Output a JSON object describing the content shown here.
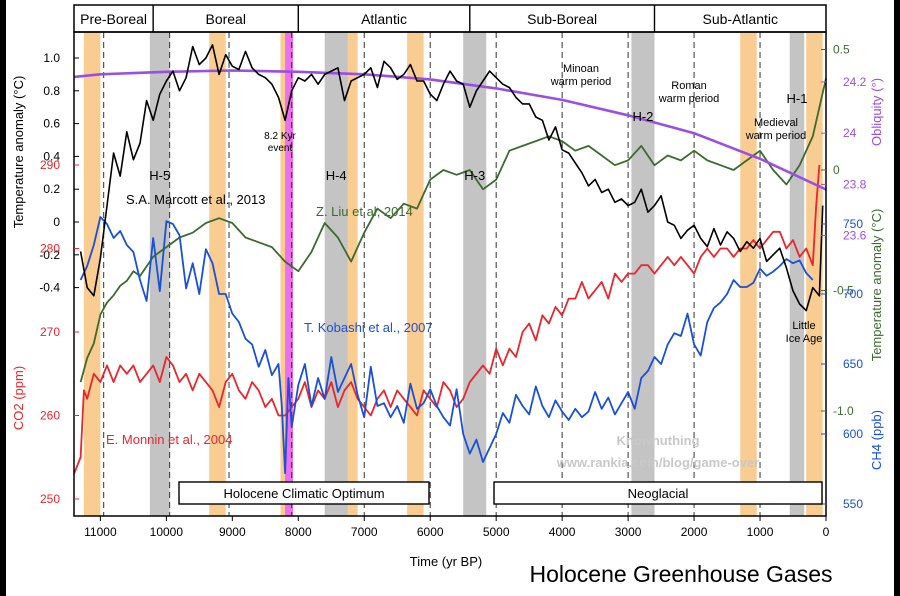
{
  "chart_data": {
    "type": "line",
    "title": "Holocene Greenhouse Gases",
    "xlabel": "Time (yr BP)",
    "xlim": [
      11400,
      0
    ],
    "xticks": [
      11000,
      10000,
      9000,
      8000,
      7000,
      6000,
      5000,
      4000,
      3000,
      2000,
      1000,
      0
    ],
    "periods": [
      {
        "label": "Pre-Boreal",
        "start": 11400,
        "end": 10200
      },
      {
        "label": "Boreal",
        "start": 10200,
        "end": 8000
      },
      {
        "label": "Atlantic",
        "start": 8000,
        "end": 5400
      },
      {
        "label": "Sub-Boreal",
        "start": 5400,
        "end": 2600
      },
      {
        "label": "Sub-Atlantic",
        "start": 2600,
        "end": 0
      }
    ],
    "axes": {
      "temperature_marcott": {
        "label": "Temperature anomaly (°C)",
        "ticks": [
          "1.0",
          "0.8",
          "0.6",
          "0.4",
          "0.2",
          "0",
          "-0.2",
          "-0.4"
        ],
        "color": "#000000"
      },
      "co2": {
        "label": "CO2 (ppm)",
        "ticks": [
          "290",
          "280",
          "270",
          "260",
          "250"
        ],
        "color": "#e8262d"
      },
      "obliquity": {
        "label": "Obliquity (°)",
        "ticks": [
          "24.2",
          "24",
          "23.8",
          "23.6"
        ],
        "color": "#9a4fe0"
      },
      "temperature_liu": {
        "label": "Temperature anomaly (°C)",
        "ticks": [
          "0.5",
          "0",
          "-0.5",
          "-1.0"
        ],
        "color": "#3c6b2e"
      },
      "ch4": {
        "label": "CH4 (ppb)",
        "ticks": [
          "750",
          "700",
          "650",
          "600",
          "550"
        ],
        "color": "#1a4fd8"
      }
    },
    "cold_events": [
      {
        "label": "H-5",
        "start": 10250,
        "end": 9950
      },
      {
        "label": "H-4",
        "start": 7600,
        "end": 7250
      },
      {
        "label": "H-3",
        "start": 5500,
        "end": 5150
      },
      {
        "label": "H-2",
        "start": 2950,
        "end": 2600
      },
      {
        "label": "H-1",
        "start": 550,
        "end": 330
      }
    ],
    "warm_bands": [
      {
        "start": 11250,
        "end": 11000
      },
      {
        "start": 9350,
        "end": 9100
      },
      {
        "start": 8270,
        "end": 8120
      },
      {
        "start": 7350,
        "end": 7100
      },
      {
        "start": 6350,
        "end": 6100
      },
      {
        "start": 1300,
        "end": 1050
      },
      {
        "start": 300,
        "end": 50
      }
    ],
    "event_8_2": {
      "label": "8.2 Kyr event",
      "start": 8200,
      "end": 8080
    },
    "dashed_lines": [
      10950,
      9950,
      9050,
      8100,
      7000,
      6000,
      5000,
      4000,
      3000,
      2000,
      1000
    ],
    "annotations": {
      "minoan": "Minoan warm period",
      "roman": "Roman warm period",
      "medieval": "Medieval warm period",
      "little_ice_age": "Little Ice Age",
      "event_8_2": "8.2 Kyr event",
      "optimum": "Holocene Climatic Optimum",
      "neoglacial": "Neoglacial",
      "watermark": [
        "Knownuthing",
        "www.rankia.com/blog/game-over"
      ]
    },
    "series": [
      {
        "name": "S.A. Marcott et al., 2013",
        "axis": "temperature_marcott",
        "color": "#000000",
        "x": [
          11300,
          11200,
          11100,
          11000,
          10900,
          10800,
          10700,
          10600,
          10500,
          10400,
          10300,
          10200,
          10100,
          10000,
          9900,
          9800,
          9700,
          9600,
          9500,
          9400,
          9300,
          9200,
          9100,
          9000,
          8900,
          8800,
          8700,
          8600,
          8500,
          8400,
          8300,
          8200,
          8100,
          8000,
          7900,
          7800,
          7700,
          7600,
          7500,
          7400,
          7300,
          7200,
          7100,
          7000,
          6900,
          6800,
          6700,
          6600,
          6500,
          6400,
          6300,
          6200,
          6100,
          6000,
          5900,
          5800,
          5700,
          5600,
          5500,
          5400,
          5300,
          5200,
          5100,
          5000,
          4900,
          4800,
          4700,
          4600,
          4500,
          4400,
          4300,
          4200,
          4100,
          4000,
          3900,
          3800,
          3700,
          3600,
          3500,
          3400,
          3300,
          3200,
          3100,
          3000,
          2900,
          2800,
          2700,
          2600,
          2500,
          2400,
          2300,
          2200,
          2100,
          2000,
          1900,
          1800,
          1700,
          1600,
          1500,
          1400,
          1300,
          1200,
          1100,
          1000,
          900,
          800,
          700,
          600,
          500,
          400,
          300,
          200,
          100,
          50
        ],
        "y": [
          -0.18,
          -0.4,
          -0.45,
          -0.22,
          0.1,
          0.42,
          0.28,
          0.55,
          0.38,
          0.48,
          0.74,
          0.62,
          0.78,
          0.86,
          0.92,
          0.8,
          0.88,
          1.07,
          0.96,
          1.0,
          1.08,
          0.9,
          1.02,
          0.95,
          0.93,
          1.04,
          0.94,
          0.9,
          0.88,
          0.84,
          0.76,
          0.62,
          0.8,
          0.88,
          0.86,
          0.9,
          0.84,
          0.9,
          0.92,
          0.94,
          0.74,
          0.86,
          0.88,
          0.9,
          0.94,
          0.82,
          0.98,
          0.94,
          0.87,
          0.9,
          0.96,
          0.86,
          0.86,
          0.78,
          0.74,
          0.84,
          0.92,
          0.86,
          0.84,
          0.7,
          0.8,
          0.86,
          0.92,
          0.88,
          0.84,
          0.82,
          0.76,
          0.72,
          0.72,
          0.64,
          0.62,
          0.5,
          0.58,
          0.44,
          0.42,
          0.36,
          0.3,
          0.22,
          0.26,
          0.18,
          0.2,
          0.12,
          0.14,
          0.1,
          0.12,
          0.2,
          0.06,
          0.1,
          0.16,
          0.0,
          -0.02,
          -0.1,
          -0.05,
          -0.02,
          -0.1,
          -0.15,
          -0.04,
          -0.14,
          -0.06,
          -0.1,
          -0.18,
          -0.12,
          -0.16,
          -0.1,
          -0.24,
          -0.2,
          -0.16,
          -0.28,
          -0.42,
          -0.5,
          -0.54,
          -0.4,
          -0.45,
          0.1
        ]
      },
      {
        "name": "Z. Liu et al., 2014",
        "axis": "temperature_liu",
        "color": "#3c6b2e",
        "x": [
          11300,
          11200,
          11100,
          11000,
          10900,
          10800,
          10700,
          10600,
          10500,
          10400,
          10300,
          10200,
          10100,
          10000,
          9800,
          9600,
          9400,
          9200,
          9000,
          8800,
          8600,
          8400,
          8200,
          8000,
          7800,
          7600,
          7400,
          7200,
          7000,
          6800,
          6600,
          6400,
          6200,
          6000,
          5800,
          5600,
          5400,
          5200,
          5000,
          4800,
          4600,
          4400,
          4200,
          4000,
          3800,
          3600,
          3400,
          3200,
          3000,
          2800,
          2600,
          2400,
          2200,
          2000,
          1800,
          1600,
          1400,
          1200,
          1000,
          800,
          600,
          400,
          200,
          0
        ],
        "y": [
          -0.88,
          -0.78,
          -0.72,
          -0.6,
          -0.55,
          -0.52,
          -0.48,
          -0.46,
          -0.42,
          -0.44,
          -0.4,
          -0.36,
          -0.34,
          -0.32,
          -0.28,
          -0.26,
          -0.22,
          -0.2,
          -0.22,
          -0.28,
          -0.3,
          -0.32,
          -0.38,
          -0.42,
          -0.34,
          -0.22,
          -0.28,
          -0.38,
          -0.26,
          -0.16,
          -0.2,
          -0.14,
          -0.16,
          -0.04,
          0.0,
          -0.02,
          0.0,
          -0.08,
          -0.04,
          0.08,
          0.1,
          0.12,
          0.14,
          0.12,
          0.08,
          0.1,
          0.06,
          0.02,
          0.04,
          0.1,
          0.02,
          0.06,
          0.04,
          0.08,
          0.04,
          0.02,
          0.0,
          0.04,
          0.08,
          0.0,
          -0.06,
          0.02,
          0.14,
          0.38
        ]
      },
      {
        "name": "T. Kobashi et al., 2007",
        "axis": "ch4",
        "color": "#1a4fd8",
        "x": [
          11300,
          11200,
          11100,
          11000,
          10900,
          10800,
          10700,
          10600,
          10500,
          10400,
          10300,
          10200,
          10100,
          10000,
          9900,
          9800,
          9700,
          9600,
          9500,
          9400,
          9300,
          9200,
          9100,
          9000,
          8900,
          8800,
          8700,
          8600,
          8500,
          8400,
          8300,
          8250,
          8200,
          8150,
          8100,
          8000,
          7900,
          7800,
          7700,
          7600,
          7500,
          7400,
          7300,
          7200,
          7100,
          7000,
          6900,
          6800,
          6700,
          6600,
          6500,
          6400,
          6300,
          6200,
          6100,
          6000,
          5900,
          5800,
          5700,
          5600,
          5500,
          5400,
          5300,
          5200,
          5100,
          5000,
          4900,
          4800,
          4700,
          4600,
          4500,
          4400,
          4300,
          4200,
          4100,
          4000,
          3900,
          3800,
          3700,
          3600,
          3500,
          3400,
          3300,
          3200,
          3100,
          3000,
          2900,
          2800,
          2700,
          2600,
          2500,
          2400,
          2300,
          2200,
          2100,
          2000,
          1900,
          1800,
          1700,
          1600,
          1500,
          1400,
          1300,
          1200,
          1100,
          1000,
          900,
          800,
          700,
          600,
          500,
          400,
          300,
          200
        ],
        "y": [
          710,
          720,
          735,
          755,
          750,
          740,
          745,
          735,
          730,
          710,
          695,
          740,
          702,
          752,
          750,
          742,
          704,
          722,
          700,
          732,
          722,
          700,
          700,
          686,
          680,
          668,
          664,
          648,
          660,
          642,
          650,
          620,
          572,
          640,
          605,
          635,
          650,
          620,
          640,
          625,
          655,
          630,
          640,
          650,
          628,
          612,
          648,
          620,
          622,
          612,
          620,
          608,
          636,
          618,
          622,
          632,
          620,
          612,
          606,
          632,
          600,
          586,
          596,
          580,
          590,
          600,
          615,
          608,
          628,
          620,
          614,
          634,
          620,
          612,
          624,
          616,
          610,
          618,
          612,
          616,
          630,
          618,
          626,
          614,
          622,
          630,
          618,
          640,
          645,
          655,
          650,
          664,
          672,
          670,
          686,
          664,
          656,
          680,
          690,
          694,
          700,
          710,
          705,
          705,
          708,
          718,
          713,
          716,
          720,
          725,
          722,
          724,
          715,
          710
        ]
      },
      {
        "name": "E. Monnin et al., 2004",
        "axis": "co2",
        "color": "#e8262d",
        "x": [
          11400,
          11300,
          11250,
          11200,
          11100,
          11000,
          10900,
          10800,
          10700,
          10600,
          10500,
          10400,
          10300,
          10200,
          10100,
          10000,
          9900,
          9800,
          9700,
          9600,
          9500,
          9400,
          9300,
          9200,
          9100,
          9000,
          8900,
          8800,
          8700,
          8600,
          8500,
          8400,
          8300,
          8200,
          8100,
          8000,
          7900,
          7800,
          7700,
          7600,
          7500,
          7400,
          7300,
          7200,
          7100,
          7000,
          6900,
          6800,
          6700,
          6600,
          6500,
          6400,
          6300,
          6200,
          6100,
          6000,
          5900,
          5800,
          5700,
          5600,
          5500,
          5400,
          5300,
          5200,
          5100,
          5000,
          4900,
          4800,
          4700,
          4600,
          4500,
          4400,
          4300,
          4200,
          4100,
          4000,
          3900,
          3800,
          3700,
          3600,
          3500,
          3400,
          3300,
          3200,
          3100,
          3000,
          2900,
          2800,
          2700,
          2600,
          2500,
          2400,
          2300,
          2200,
          2100,
          2000,
          1900,
          1800,
          1700,
          1600,
          1500,
          1400,
          1300,
          1200,
          1100,
          1000,
          900,
          800,
          700,
          600,
          500,
          400,
          300,
          200,
          150,
          100
        ],
        "y": [
          253,
          255,
          263,
          262,
          265,
          264,
          266,
          264,
          266,
          265,
          266,
          264,
          265,
          266,
          264,
          267,
          266,
          264,
          265,
          263,
          265,
          264,
          263,
          261,
          264,
          265,
          263,
          262,
          264,
          263,
          261,
          262,
          260,
          260,
          261,
          262,
          264,
          261,
          263,
          262,
          264,
          261,
          263,
          264,
          262,
          261,
          260,
          262,
          263,
          261,
          263,
          262,
          261,
          260,
          263,
          262,
          261,
          264,
          263,
          261,
          262,
          264,
          265,
          266,
          265,
          268,
          266,
          268,
          267,
          270,
          271,
          269,
          272,
          271,
          273,
          272,
          274,
          274,
          276,
          274,
          275,
          276,
          274,
          277,
          276,
          277,
          277,
          278,
          278,
          277,
          278,
          279,
          278,
          279,
          278,
          277,
          279,
          280,
          279,
          280,
          280,
          279,
          280,
          280,
          281,
          280,
          281,
          282,
          282,
          280,
          281,
          279,
          280,
          278,
          285,
          290
        ]
      },
      {
        "name": "Obliquity",
        "axis": "obliquity",
        "color": "#9a4fe0",
        "x": [
          11400,
          11000,
          10000,
          9000,
          8000,
          7000,
          6000,
          5000,
          4000,
          3000,
          2000,
          1000,
          0
        ],
        "y": [
          24.22,
          24.23,
          24.24,
          24.245,
          24.24,
          24.23,
          24.21,
          24.175,
          24.13,
          24.07,
          24.0,
          23.9,
          23.78
        ]
      }
    ],
    "series_labels": [
      {
        "series": "S.A. Marcott et al., 2013",
        "text": "S.A. Marcott et al., 2013"
      },
      {
        "series": "Z. Liu et al., 2014",
        "text": "Z. Liu et al, 2014"
      },
      {
        "series": "T. Kobashi et al., 2007",
        "text": "T. Kobashi et al., 2007"
      },
      {
        "series": "E. Monnin et al., 2004",
        "text": "E. Monnin et al., 2004"
      }
    ]
  }
}
